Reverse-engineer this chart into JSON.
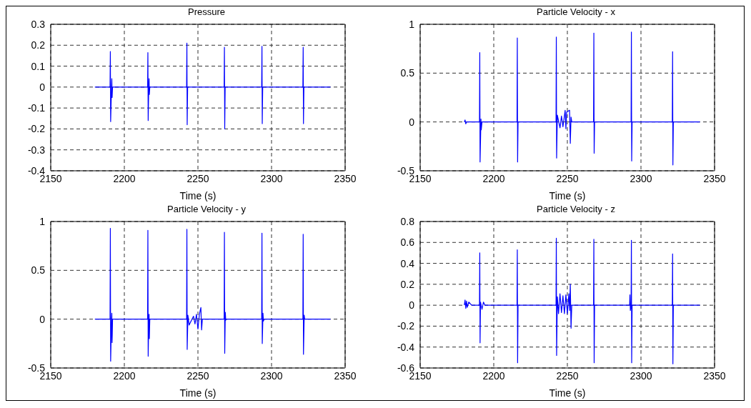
{
  "chart_data": [
    {
      "type": "line",
      "title": "Pressure",
      "xlabel": "Time (s)",
      "xlim": [
        2150,
        2350
      ],
      "xticks": [
        2150,
        2200,
        2250,
        2300,
        2350
      ],
      "ylim": [
        -0.4,
        0.3
      ],
      "yticks": [
        -0.4,
        -0.3,
        -0.2,
        -0.1,
        0,
        0.1,
        0.2,
        0.3
      ],
      "grid": true,
      "x": [
        2180,
        2190.3,
        2190.5,
        2190.7,
        2191.3,
        2191.5,
        2191.7,
        2192,
        2215.8,
        2216,
        2216.2,
        2216.6,
        2216.8,
        2217,
        2217.3,
        2242.3,
        2242.5,
        2242.7,
        2243,
        2267.8,
        2268,
        2268.2,
        2268.5,
        2293.3,
        2293.5,
        2293.7,
        2294,
        2321.3,
        2321.5,
        2321.7,
        2322,
        2340
      ],
      "series": [
        {
          "color": "#0000ff",
          "values": [
            0,
            0,
            0.17,
            -0.165,
            0,
            0.04,
            -0.05,
            0,
            0,
            0.165,
            -0.16,
            0,
            0.04,
            -0.035,
            0,
            0,
            0.21,
            -0.18,
            0,
            0,
            0.19,
            -0.2,
            0,
            0,
            0.195,
            -0.175,
            0,
            0,
            0.19,
            -0.175,
            0,
            0
          ]
        }
      ]
    },
    {
      "type": "line",
      "title": "Particle Velocity - x",
      "xlabel": "Time (s)",
      "xlim": [
        2150,
        2350
      ],
      "xticks": [
        2150,
        2200,
        2250,
        2300,
        2350
      ],
      "ylim": [
        -0.5,
        1
      ],
      "yticks": [
        -0.5,
        0,
        0.5,
        1
      ],
      "grid": true,
      "x": [
        2180,
        2180.5,
        2181,
        2181.5,
        2190.3,
        2190.5,
        2190.7,
        2191.3,
        2191.5,
        2192,
        2215.8,
        2216,
        2216.2,
        2216.5,
        2242.3,
        2242.5,
        2242.7,
        2243.2,
        2245,
        2246,
        2247,
        2248.5,
        2249,
        2249.5,
        2251.5,
        2252,
        2252.5,
        2253,
        2267.8,
        2268,
        2268.2,
        2268.5,
        2293.3,
        2293.5,
        2293.7,
        2294,
        2321.3,
        2321.5,
        2321.7,
        2322,
        2340
      ],
      "series": [
        {
          "color": "#0000ff",
          "values": [
            0,
            0.02,
            -0.02,
            0,
            0,
            0.71,
            -0.41,
            0.03,
            -0.08,
            0,
            0,
            0.86,
            -0.41,
            0,
            0,
            0.87,
            -0.37,
            0.07,
            -0.06,
            0.06,
            -0.05,
            0.12,
            -0.07,
            0.1,
            0.12,
            -0.22,
            0.05,
            0,
            0,
            0.91,
            -0.32,
            0,
            0,
            0.92,
            -0.4,
            0,
            0,
            0.72,
            -0.44,
            0,
            0
          ]
        }
      ]
    },
    {
      "type": "line",
      "title": "Particle Velocity - y",
      "xlabel": "Time (s)",
      "xlim": [
        2150,
        2350
      ],
      "xticks": [
        2150,
        2200,
        2250,
        2300,
        2350
      ],
      "ylim": [
        -0.5,
        1
      ],
      "yticks": [
        -0.5,
        0,
        0.5,
        1
      ],
      "grid": true,
      "x": [
        2180,
        2190.3,
        2190.5,
        2190.7,
        2191.3,
        2191.5,
        2191.7,
        2192,
        2215.8,
        2216,
        2216.2,
        2216.6,
        2216.8,
        2217,
        2217.3,
        2242.3,
        2242.5,
        2242.7,
        2243.2,
        2244,
        2247,
        2248,
        2249,
        2250,
        2251,
        2252,
        2252.5,
        2253,
        2267.8,
        2268,
        2268.2,
        2268.6,
        2268.9,
        2269.3,
        2293.3,
        2293.5,
        2293.7,
        2294.2,
        2294.5,
        2295,
        2321.3,
        2321.5,
        2321.7,
        2322.2,
        2322.5,
        2340
      ],
      "series": [
        {
          "color": "#0000ff",
          "values": [
            0,
            0,
            0.93,
            -0.43,
            0,
            0.06,
            -0.24,
            0,
            0,
            0.91,
            -0.38,
            0,
            0.05,
            -0.2,
            0,
            0,
            0.92,
            -0.31,
            0.04,
            -0.06,
            0.03,
            -0.05,
            0.05,
            -0.1,
            0.05,
            0.12,
            -0.11,
            0,
            0,
            0.89,
            -0.35,
            0.07,
            -0.01,
            0,
            0,
            0.88,
            -0.25,
            0.06,
            -0.02,
            0,
            0,
            0.87,
            -0.36,
            0.04,
            0,
            0
          ]
        }
      ]
    },
    {
      "type": "line",
      "title": "Particle Velocity - z",
      "xlabel": "Time (s)",
      "xlim": [
        2150,
        2350
      ],
      "xticks": [
        2150,
        2200,
        2250,
        2300,
        2350
      ],
      "ylim": [
        -0.6,
        0.8
      ],
      "yticks": [
        -0.6,
        -0.4,
        -0.2,
        0,
        0.2,
        0.4,
        0.6,
        0.8
      ],
      "grid": true,
      "x": [
        2180,
        2180.5,
        2181,
        2181.5,
        2182,
        2183,
        2185,
        2190.3,
        2190.5,
        2190.7,
        2191,
        2192,
        2193,
        2194,
        2215.8,
        2216,
        2216.2,
        2216.5,
        2242.3,
        2242.5,
        2242.7,
        2243.2,
        2244,
        2245,
        2246,
        2247,
        2248,
        2249,
        2250,
        2251,
        2251.5,
        2252,
        2252.5,
        2253,
        2267.8,
        2268,
        2268.2,
        2268.5,
        2292.3,
        2292.5,
        2292.8,
        2293.3,
        2293.5,
        2293.7,
        2294,
        2321.3,
        2321.5,
        2321.7,
        2322,
        2340
      ],
      "series": [
        {
          "color": "#0000ff",
          "values": [
            0,
            0.05,
            -0.03,
            0.04,
            -0.02,
            0.03,
            0,
            0,
            0.5,
            -0.36,
            0.03,
            -0.04,
            0.03,
            0,
            0,
            0.53,
            -0.55,
            0,
            0,
            0.64,
            -0.48,
            0.08,
            -0.08,
            0.11,
            -0.07,
            0.09,
            -0.08,
            0.1,
            -0.08,
            0.11,
            -0.05,
            0.2,
            -0.22,
            0,
            0,
            0.63,
            -0.55,
            0,
            0,
            0.1,
            -0.05,
            0,
            0.62,
            -0.55,
            0,
            0,
            0.49,
            -0.56,
            0,
            0
          ]
        }
      ]
    }
  ]
}
